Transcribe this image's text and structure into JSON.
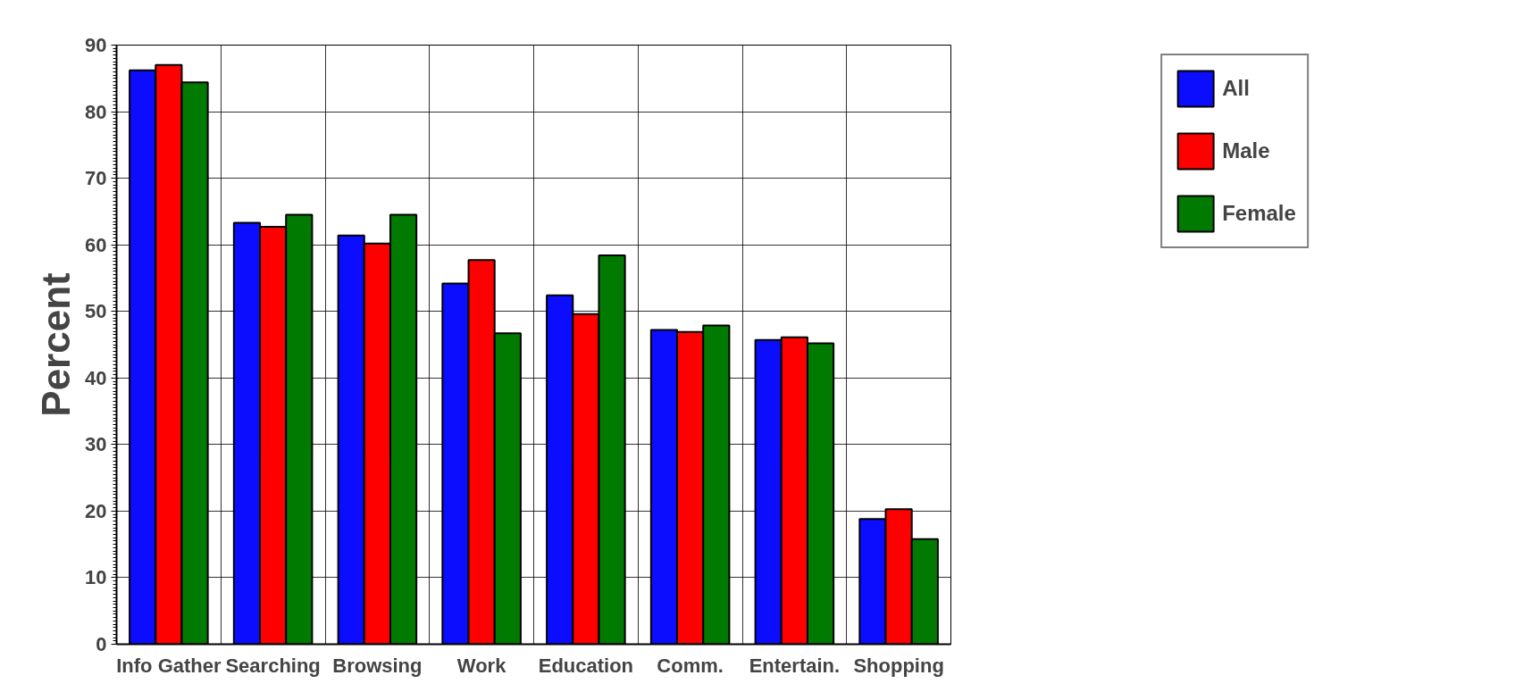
{
  "chart_data": {
    "type": "bar",
    "ylabel": "Percent",
    "categories": [
      "Info Gather",
      "Searching",
      "Browsing",
      "Work",
      "Education",
      "Comm.",
      "Entertain.",
      "Shopping"
    ],
    "series": [
      {
        "name": "All",
        "color": "#0c0cff",
        "values": [
          86.2,
          63.3,
          61.4,
          54.2,
          52.4,
          47.2,
          45.7,
          18.8
        ]
      },
      {
        "name": "Male",
        "color": "#ff0000",
        "values": [
          87.0,
          62.7,
          60.2,
          57.7,
          49.6,
          46.9,
          46.1,
          20.3
        ]
      },
      {
        "name": "Female",
        "color": "#007a00",
        "values": [
          84.4,
          64.5,
          64.5,
          46.7,
          58.4,
          47.9,
          45.2,
          15.8
        ]
      }
    ],
    "ylim": [
      0,
      90
    ],
    "yticks": [
      0,
      10,
      20,
      30,
      40,
      50,
      60,
      70,
      80,
      90
    ],
    "grid": true,
    "legend": "top right"
  }
}
